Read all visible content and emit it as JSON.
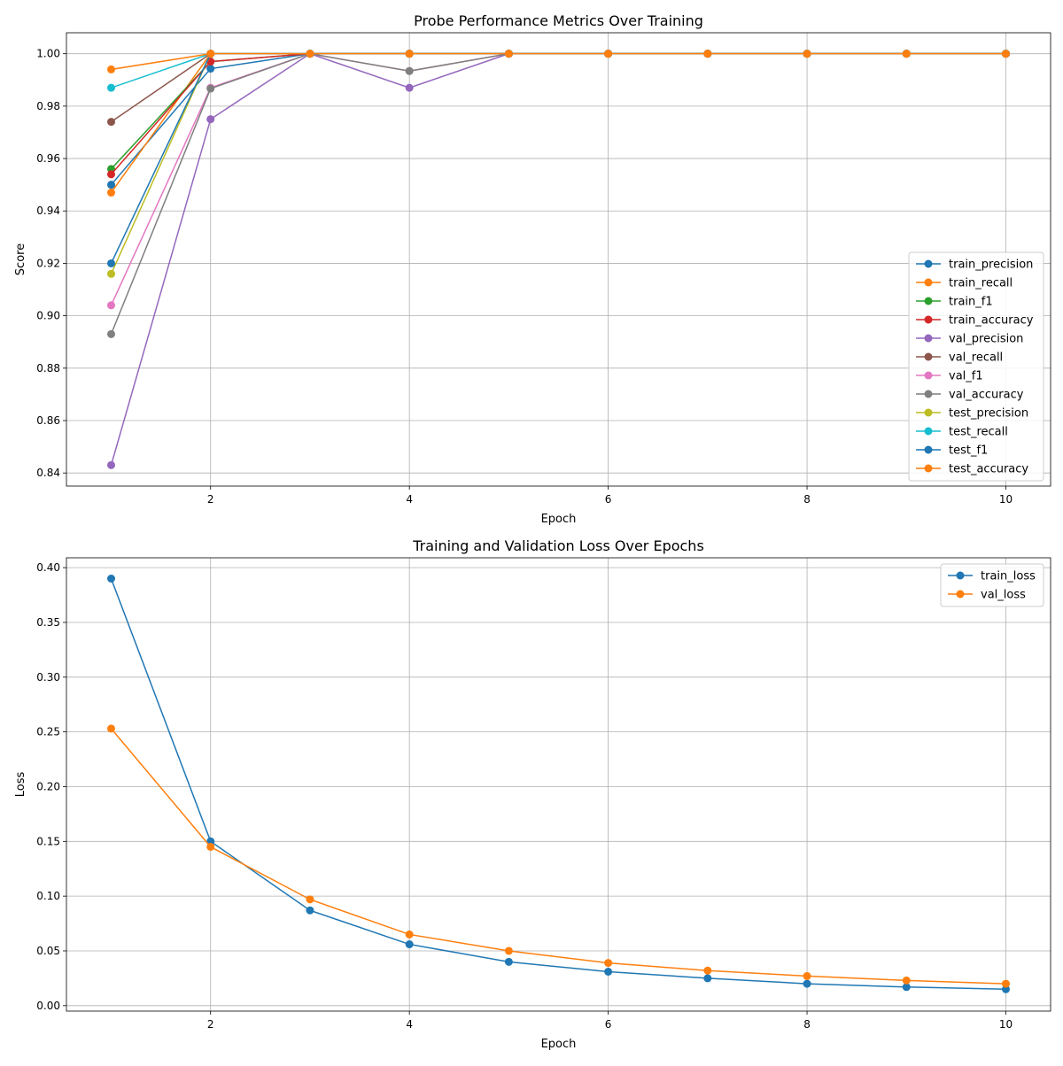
{
  "chart_data": [
    {
      "type": "line",
      "title": "Probe Performance Metrics Over Training",
      "xlabel": "Epoch",
      "ylabel": "Score",
      "xlim": [
        0.55,
        10.45
      ],
      "ylim": [
        0.835,
        1.008
      ],
      "xticks": [
        2,
        4,
        6,
        8,
        10
      ],
      "yticks": [
        0.84,
        0.86,
        0.88,
        0.9,
        0.92,
        0.94,
        0.96,
        0.98,
        1.0
      ],
      "ytick_labels": [
        "0.84",
        "0.86",
        "0.88",
        "0.90",
        "0.92",
        "0.94",
        "0.96",
        "0.98",
        "1.00"
      ],
      "grid": true,
      "legend_position": "center-right",
      "x": [
        1,
        2,
        3,
        4,
        5,
        6,
        7,
        8,
        9,
        10
      ],
      "series": [
        {
          "name": "train_precision",
          "color": "#1f77b4",
          "values": [
            0.95,
            0.9943,
            1,
            1,
            1,
            1,
            1,
            1,
            1,
            1
          ]
        },
        {
          "name": "train_recall",
          "color": "#ff7f0e",
          "values": [
            0.947,
            1,
            1,
            1,
            1,
            1,
            1,
            1,
            1,
            1
          ]
        },
        {
          "name": "train_f1",
          "color": "#2ca02c",
          "values": [
            0.956,
            0.997,
            1,
            1,
            1,
            1,
            1,
            1,
            1,
            1
          ]
        },
        {
          "name": "train_accuracy",
          "color": "#d62728",
          "values": [
            0.954,
            0.997,
            1,
            1,
            1,
            1,
            1,
            1,
            1,
            1
          ]
        },
        {
          "name": "val_precision",
          "color": "#9467bd",
          "values": [
            0.843,
            0.975,
            1,
            0.987,
            1,
            1,
            1,
            1,
            1,
            1
          ]
        },
        {
          "name": "val_recall",
          "color": "#8c564b",
          "values": [
            0.974,
            1,
            1,
            1,
            1,
            1,
            1,
            1,
            1,
            1
          ]
        },
        {
          "name": "val_f1",
          "color": "#e377c2",
          "values": [
            0.904,
            0.987,
            1,
            0.9934,
            1,
            1,
            1,
            1,
            1,
            1
          ]
        },
        {
          "name": "val_accuracy",
          "color": "#7f7f7f",
          "values": [
            0.893,
            0.9867,
            1,
            0.9934,
            1,
            1,
            1,
            1,
            1,
            1
          ]
        },
        {
          "name": "test_precision",
          "color": "#bcbd22",
          "values": [
            0.916,
            1,
            1,
            1,
            1,
            1,
            1,
            1,
            1,
            1
          ]
        },
        {
          "name": "test_recall",
          "color": "#17becf",
          "values": [
            0.987,
            1,
            1,
            1,
            1,
            1,
            1,
            1,
            1,
            1
          ]
        },
        {
          "name": "test_f1",
          "color": "#1f77b4",
          "values": [
            0.92,
            1,
            1,
            1,
            1,
            1,
            1,
            1,
            1,
            1
          ]
        },
        {
          "name": "test_accuracy",
          "color": "#ff7f0e",
          "values": [
            0.994,
            1,
            1,
            1,
            1,
            1,
            1,
            1,
            1,
            1
          ]
        }
      ]
    },
    {
      "type": "line",
      "title": "Training and Validation Loss Over Epochs",
      "xlabel": "Epoch",
      "ylabel": "Loss",
      "xlim": [
        0.55,
        10.45
      ],
      "ylim": [
        -0.005,
        0.409
      ],
      "xticks": [
        2,
        4,
        6,
        8,
        10
      ],
      "yticks": [
        0,
        0.05,
        0.1,
        0.15,
        0.2,
        0.25,
        0.3,
        0.35,
        0.4
      ],
      "ytick_labels": [
        "0.00",
        "0.05",
        "0.10",
        "0.15",
        "0.20",
        "0.25",
        "0.30",
        "0.35",
        "0.40"
      ],
      "grid": true,
      "legend_position": "top-right",
      "x": [
        1,
        2,
        3,
        4,
        5,
        6,
        7,
        8,
        9,
        10
      ],
      "series": [
        {
          "name": "train_loss",
          "color": "#1f77b4",
          "values": [
            0.39,
            0.15,
            0.087,
            0.056,
            0.04,
            0.031,
            0.025,
            0.02,
            0.017,
            0.015
          ]
        },
        {
          "name": "val_loss",
          "color": "#ff7f0e",
          "values": [
            0.253,
            0.145,
            0.097,
            0.065,
            0.05,
            0.039,
            0.032,
            0.027,
            0.023,
            0.02
          ]
        }
      ]
    }
  ]
}
